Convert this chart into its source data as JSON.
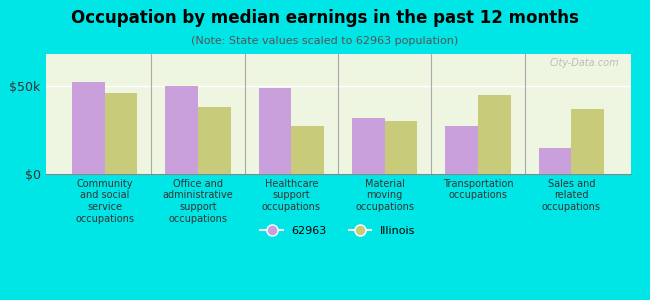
{
  "title": "Occupation by median earnings in the past 12 months",
  "subtitle": "(Note: State values scaled to 62963 population)",
  "categories": [
    "Community\nand social\nservice\noccupations",
    "Office and\nadministrative\nsupport\noccupations",
    "Healthcare\nsupport\noccupations",
    "Material\nmoving\noccupations",
    "Transportation\noccupations",
    "Sales and\nrelated\noccupations"
  ],
  "values_62963": [
    52000,
    50000,
    49000,
    32000,
    27000,
    15000
  ],
  "values_illinois": [
    46000,
    38000,
    27000,
    30000,
    45000,
    37000
  ],
  "color_62963": "#c9a0dc",
  "color_illinois": "#c8cc7a",
  "yticks": [
    0,
    50000
  ],
  "ytick_labels": [
    "$0",
    "$50k"
  ],
  "ylim": [
    0,
    68000
  ],
  "background_color": "#00e5e5",
  "plot_bg_color": "#eef5e0",
  "legend_label_62963": "62963",
  "legend_label_illinois": "Illinois",
  "watermark": "City-Data.com"
}
